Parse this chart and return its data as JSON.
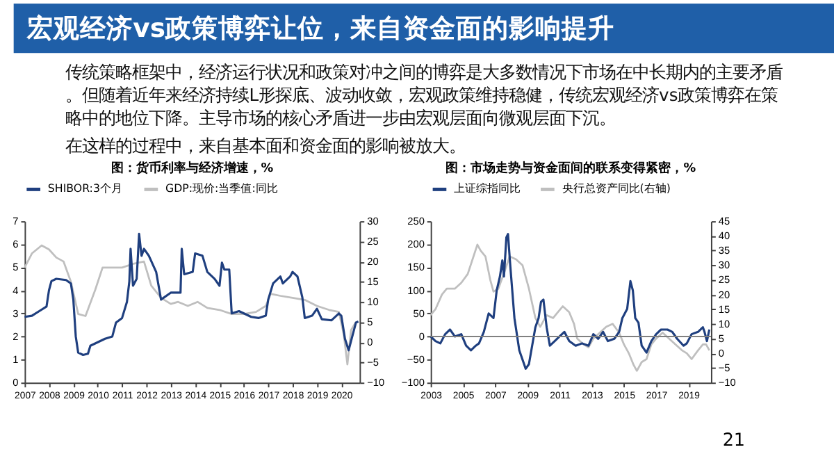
{
  "chart_data": [
    {
      "type": "other",
      "title": "宏观经济vs政策博弈让位，来自资金面的影响提升",
      "annotations": [
        "传统策略框架中，经济运行状况和政策对冲之间的博弈是大多数情况下市场在中长期内的主要矛盾。但随着近年来经济持续L形探底、波动收敛，宏观政策维持稳健，传统宏观经济vs政策博弈在策略中的地位下降。主导市场的核心矛盾进一步由宏观层面向微观层面下沉。",
        "在这样的过程中，来自基本面和资金面的影响被放大。"
      ]
    },
    {
      "type": "line",
      "title": "图：货币利率与经济增速，%",
      "legend": "top",
      "grid": false,
      "xlim": [
        2007,
        2020.75
      ],
      "xticks": [
        2007,
        2008,
        2009,
        2010,
        2011,
        2012,
        2013,
        2014,
        2015,
        2016,
        2017,
        2018,
        2019,
        2020
      ],
      "ylim": [
        0,
        7
      ],
      "yticks": [
        0,
        1,
        2,
        3,
        4,
        5,
        6,
        7
      ],
      "y2lim": [
        -10,
        30
      ],
      "y2ticks": [
        -10,
        -5,
        0,
        5,
        10,
        15,
        20,
        25,
        30
      ],
      "series": [
        {
          "name": "SHIBOR:3个月",
          "color": "#1f3f7f",
          "x": [
            2007.0,
            2007.3,
            2007.6,
            2007.9,
            2008.0,
            2008.1,
            2008.3,
            2008.7,
            2008.9,
            2009.0,
            2009.1,
            2009.2,
            2009.4,
            2009.6,
            2009.7,
            2010.0,
            2010.3,
            2010.6,
            2010.75,
            2011.0,
            2011.2,
            2011.3,
            2011.35,
            2011.45,
            2011.6,
            2011.7,
            2011.8,
            2011.9,
            2012.1,
            2012.4,
            2012.6,
            2013.0,
            2013.4,
            2013.45,
            2013.55,
            2013.9,
            2014.0,
            2014.3,
            2014.5,
            2014.8,
            2015.0,
            2015.1,
            2015.2,
            2015.4,
            2015.5,
            2015.8,
            2016.0,
            2016.3,
            2016.6,
            2016.9,
            2017.0,
            2017.2,
            2017.5,
            2017.6,
            2017.9,
            2018.0,
            2018.2,
            2018.4,
            2018.5,
            2018.8,
            2019.0,
            2019.2,
            2019.6,
            2019.9,
            2020.0,
            2020.15,
            2020.3,
            2020.45,
            2020.6,
            2020.7
          ],
          "values": [
            2.85,
            2.9,
            3.1,
            3.3,
            4.0,
            4.4,
            4.5,
            4.45,
            4.3,
            3.6,
            2.0,
            1.3,
            1.2,
            1.25,
            1.6,
            1.75,
            1.9,
            2.0,
            2.6,
            2.8,
            3.5,
            4.4,
            5.8,
            4.2,
            4.5,
            6.45,
            5.5,
            5.8,
            5.5,
            4.8,
            3.6,
            3.9,
            3.9,
            5.8,
            4.7,
            4.8,
            5.6,
            5.5,
            4.8,
            4.5,
            4.2,
            5.2,
            4.9,
            4.9,
            3.0,
            3.1,
            3.0,
            2.85,
            2.8,
            2.9,
            3.6,
            4.3,
            4.6,
            4.3,
            4.6,
            4.8,
            4.6,
            3.7,
            2.8,
            2.9,
            3.2,
            2.75,
            2.7,
            3.0,
            2.9,
            1.9,
            1.4,
            2.0,
            2.6,
            2.65
          ]
        },
        {
          "name": "GDP:现价:当季值:同比",
          "color": "#bfbfbf",
          "axis": "y2",
          "x": [
            2007.0,
            2007.3,
            2007.7,
            2008.0,
            2008.3,
            2008.6,
            2008.9,
            2009.2,
            2009.5,
            2009.9,
            2010.2,
            2010.6,
            2011.0,
            2011.5,
            2011.9,
            2012.2,
            2012.6,
            2013.0,
            2013.3,
            2013.7,
            2014.1,
            2014.5,
            2015.0,
            2015.5,
            2016.0,
            2016.5,
            2016.9,
            2017.1,
            2017.5,
            2018.0,
            2018.5,
            2019.0,
            2019.5,
            2019.9,
            2020.1,
            2020.25,
            2020.4,
            2020.6
          ],
          "values": [
            18.5,
            22,
            24,
            23,
            21,
            20,
            15,
            7,
            6.5,
            13,
            18.5,
            18.5,
            18.5,
            19.5,
            20,
            14,
            11,
            9.5,
            10,
            9,
            10,
            8.5,
            8,
            7,
            7,
            7.5,
            9,
            12,
            11.5,
            11,
            10.5,
            9,
            8,
            7.5,
            2,
            -5.5,
            3,
            5
          ]
        }
      ]
    },
    {
      "type": "line",
      "title": "图：市场走势与资金面间的联系变得紧密，%",
      "legend": "top",
      "grid": false,
      "xlim": [
        2003,
        2020.4
      ],
      "xticks": [
        2003,
        2005,
        2007,
        2009,
        2011,
        2013,
        2015,
        2017,
        2019
      ],
      "ylim": [
        -100,
        250
      ],
      "yticks": [
        -100,
        -50,
        0,
        50,
        100,
        150,
        200,
        250
      ],
      "y2lim": [
        -10,
        45
      ],
      "y2ticks": [
        -10,
        -5,
        0,
        5,
        10,
        15,
        20,
        25,
        30,
        35,
        40,
        45
      ],
      "ref_lines": [
        {
          "axis": "y",
          "value": 0,
          "color": "#808080"
        }
      ],
      "annotations": [
        "21"
      ],
      "series": [
        {
          "name": "上证综指同比",
          "color": "#1f3f7f",
          "x": [
            2003.0,
            2003.3,
            2003.6,
            2003.9,
            2004.2,
            2004.5,
            2004.9,
            2005.2,
            2005.5,
            2005.8,
            2006.0,
            2006.3,
            2006.6,
            2006.9,
            2007.1,
            2007.3,
            2007.45,
            2007.55,
            2007.7,
            2007.8,
            2007.95,
            2008.2,
            2008.5,
            2008.8,
            2008.9,
            2009.1,
            2009.3,
            2009.5,
            2009.7,
            2009.85,
            2010.0,
            2010.2,
            2010.4,
            2010.7,
            2011.0,
            2011.3,
            2011.6,
            2012.0,
            2012.4,
            2012.8,
            2013.1,
            2013.4,
            2013.7,
            2014.0,
            2014.4,
            2014.7,
            2014.9,
            2015.2,
            2015.4,
            2015.55,
            2015.7,
            2015.9,
            2016.1,
            2016.4,
            2016.7,
            2017.0,
            2017.3,
            2017.7,
            2018.0,
            2018.3,
            2018.7,
            2018.9,
            2019.2,
            2019.6,
            2019.9,
            2020.0,
            2020.15,
            2020.3
          ],
          "values": [
            0,
            -10,
            -15,
            5,
            15,
            0,
            5,
            -20,
            -30,
            -20,
            -15,
            10,
            50,
            40,
            100,
            130,
            165,
            130,
            215,
            222,
            150,
            40,
            -30,
            -60,
            -70,
            -60,
            -20,
            20,
            40,
            75,
            80,
            20,
            -20,
            -10,
            0,
            10,
            -10,
            -20,
            -15,
            -20,
            5,
            -5,
            10,
            -10,
            -5,
            10,
            40,
            60,
            120,
            100,
            40,
            30,
            -20,
            -35,
            -10,
            5,
            15,
            15,
            10,
            -5,
            -20,
            -15,
            5,
            10,
            20,
            10,
            -10,
            15
          ]
        },
        {
          "name": "央行总资产同比(右轴)",
          "color": "#bfbfbf",
          "axis": "y2",
          "x": [
            2003.0,
            2003.3,
            2003.7,
            2004.0,
            2004.5,
            2004.9,
            2005.3,
            2005.6,
            2005.9,
            2006.1,
            2006.4,
            2006.7,
            2006.9,
            2007.2,
            2007.6,
            2007.9,
            2008.3,
            2008.7,
            2009.1,
            2009.5,
            2009.8,
            2010.2,
            2010.6,
            2010.9,
            2011.2,
            2011.6,
            2011.9,
            2012.1,
            2012.5,
            2012.8,
            2013.1,
            2013.5,
            2013.9,
            2014.3,
            2014.7,
            2015.0,
            2015.3,
            2015.6,
            2015.8,
            2016.1,
            2016.4,
            2016.7,
            2017.0,
            2017.4,
            2017.8,
            2018.2,
            2018.6,
            2018.9,
            2019.2,
            2019.6,
            2019.9,
            2020.1,
            2020.3
          ],
          "values": [
            13,
            15,
            20,
            22,
            22,
            24,
            27,
            32,
            37,
            35,
            33,
            25,
            21,
            22,
            28,
            33,
            32,
            30,
            22,
            12,
            9,
            13,
            12,
            14,
            16,
            14,
            10,
            5,
            3,
            2,
            5,
            7,
            9,
            10,
            7,
            3,
            0,
            -4,
            -6,
            -3,
            -2,
            3,
            5,
            7,
            5,
            3,
            1,
            0,
            -2,
            1,
            3,
            3,
            1
          ]
        }
      ]
    }
  ]
}
